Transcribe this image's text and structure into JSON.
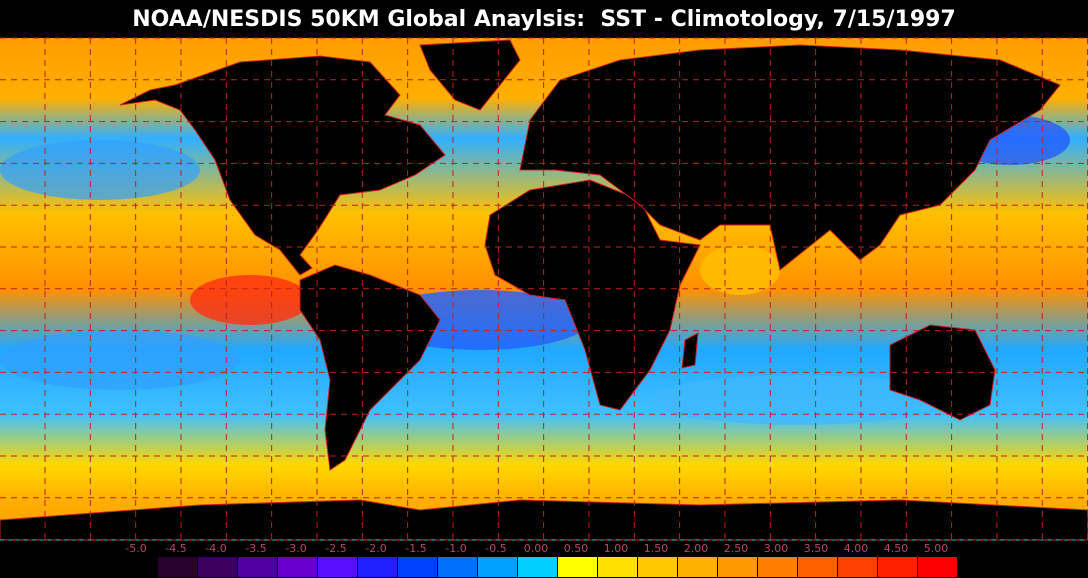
{
  "header": {
    "title": "NOAA/NESDIS 50KM Global Anaylsis:  SST - Climotology, 7/15/1997"
  },
  "colorbar": {
    "labels": [
      "-5.0",
      "-4.5",
      "-4.0",
      "-3.5",
      "-3.0",
      "-2.5",
      "-2.0",
      "-1.5",
      "-1.0",
      "-0.5",
      "0.00",
      "0.50",
      "1.00",
      "1.50",
      "2.00",
      "2.50",
      "3.00",
      "3.50",
      "4.00",
      "4.50",
      "5.00"
    ],
    "colors": [
      "#2a0030",
      "#3c0060",
      "#5000a0",
      "#6a00d0",
      "#5a10ff",
      "#2020ff",
      "#0040ff",
      "#0070ff",
      "#00a0ff",
      "#00d0ff",
      "#ffff00",
      "#ffe000",
      "#ffc800",
      "#ffb000",
      "#ff9800",
      "#ff8000",
      "#ff6000",
      "#ff4000",
      "#ff2000",
      "#ff0000"
    ]
  }
}
